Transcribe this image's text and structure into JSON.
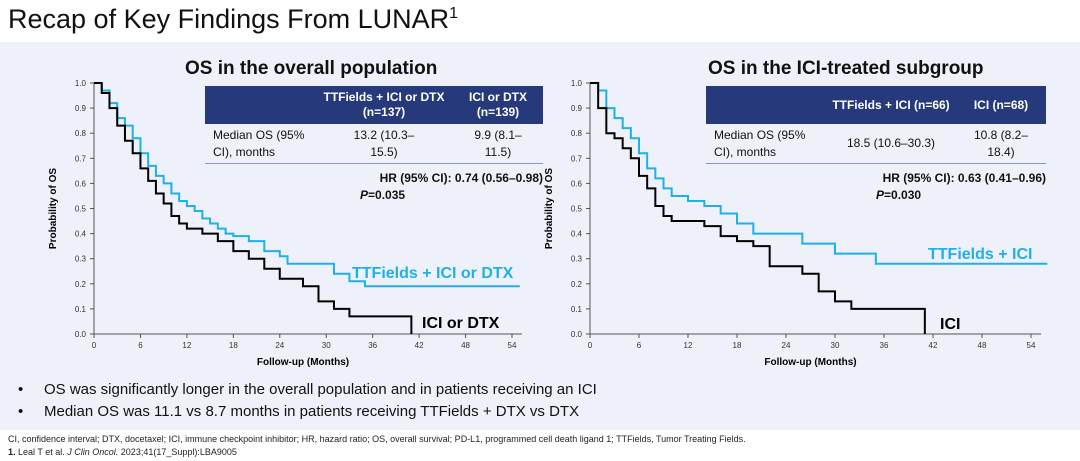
{
  "title": "Recap of Key Findings From LUNAR",
  "title_sup": "1",
  "colors": {
    "ttfields": "#1eb0ea",
    "control": "#000000",
    "table_header": "#26397a"
  },
  "chart_data": [
    {
      "type": "line",
      "title": "OS in the overall population",
      "xlabel": "Follow-up (Months)",
      "ylabel": "Probability of OS",
      "xlim": [
        0,
        54
      ],
      "ylim": [
        0,
        1
      ],
      "xticks": [
        0,
        6,
        12,
        18,
        24,
        30,
        36,
        42,
        48,
        54
      ],
      "yticks": [
        0,
        0.1,
        0.2,
        0.3,
        0.4,
        0.5,
        0.6,
        0.7,
        0.8,
        0.9,
        1.0
      ],
      "series": [
        {
          "name": "TTFields + ICI or DTX",
          "color": "#1eb0ea",
          "x": [
            0,
            1,
            2,
            3,
            4,
            5,
            6,
            7,
            8,
            9,
            10,
            11,
            12,
            13,
            14,
            15,
            16,
            17,
            18,
            20,
            22,
            24,
            25,
            31,
            33,
            35,
            55
          ],
          "y": [
            1,
            0.97,
            0.92,
            0.86,
            0.83,
            0.78,
            0.72,
            0.67,
            0.63,
            0.6,
            0.56,
            0.53,
            0.51,
            0.49,
            0.46,
            0.44,
            0.42,
            0.4,
            0.39,
            0.37,
            0.33,
            0.31,
            0.28,
            0.24,
            0.21,
            0.19,
            0.19
          ]
        },
        {
          "name": "ICI or DTX",
          "color": "#000000",
          "x": [
            0,
            1,
            2,
            3,
            4,
            5,
            6,
            7,
            8,
            9,
            10,
            11,
            12,
            14,
            16,
            18,
            20,
            22,
            24,
            27,
            29,
            31,
            33,
            41,
            41
          ],
          "y": [
            1,
            0.96,
            0.9,
            0.83,
            0.77,
            0.72,
            0.66,
            0.61,
            0.56,
            0.52,
            0.47,
            0.44,
            0.42,
            0.4,
            0.37,
            0.33,
            0.3,
            0.26,
            0.22,
            0.19,
            0.13,
            0.1,
            0.07,
            0.07,
            0
          ]
        }
      ],
      "table": {
        "headers": [
          "",
          "TTFields + ICI or DTX (n=137)",
          "ICI or DTX (n=139)"
        ],
        "row": [
          "Median OS (95% CI), months",
          "13.2 (10.3–15.5)",
          "9.9 (8.1–11.5)"
        ],
        "hr": "HR (95% CI): 0.74 (0.56–0.98)",
        "p": "P=0.035"
      }
    },
    {
      "type": "line",
      "title": "OS in the ICI-treated subgroup",
      "xlabel": "Follow-up (Months)",
      "ylabel": "Probability of OS",
      "xlim": [
        0,
        54
      ],
      "ylim": [
        0,
        1
      ],
      "xticks": [
        0,
        6,
        12,
        18,
        24,
        30,
        36,
        42,
        48,
        54
      ],
      "yticks": [
        0,
        0.1,
        0.2,
        0.3,
        0.4,
        0.5,
        0.6,
        0.7,
        0.8,
        0.9,
        1.0
      ],
      "series": [
        {
          "name": "TTFields + ICI",
          "color": "#1eb0ea",
          "x": [
            0,
            1,
            2,
            3,
            4,
            5,
            6,
            7,
            8,
            9,
            10,
            12,
            14,
            16,
            18,
            20,
            26,
            30,
            35,
            56
          ],
          "y": [
            1,
            0.97,
            0.9,
            0.86,
            0.82,
            0.78,
            0.72,
            0.66,
            0.62,
            0.58,
            0.55,
            0.53,
            0.51,
            0.48,
            0.44,
            0.4,
            0.36,
            0.32,
            0.28,
            0.28
          ]
        },
        {
          "name": "ICI",
          "color": "#000000",
          "x": [
            0,
            1,
            2,
            3,
            4,
            5,
            6,
            7,
            8,
            9,
            10,
            14,
            16,
            18,
            20,
            22,
            26,
            28,
            30,
            32,
            41,
            41
          ],
          "y": [
            1,
            0.9,
            0.8,
            0.78,
            0.74,
            0.7,
            0.63,
            0.58,
            0.51,
            0.47,
            0.45,
            0.43,
            0.39,
            0.37,
            0.35,
            0.27,
            0.24,
            0.17,
            0.13,
            0.1,
            0.1,
            0
          ]
        }
      ],
      "table": {
        "headers": [
          "",
          "TTFields + ICI (n=66)",
          "ICI (n=68)"
        ],
        "row": [
          "Median OS (95% CI), months",
          "18.5 (10.6–30.3)",
          "10.8 (8.2–18.4)"
        ],
        "hr": "HR (95% CI): 0.63 (0.41–0.96)",
        "p": "P=0.030"
      }
    }
  ],
  "bullets": [
    "OS was significantly longer in the overall population and in patients receiving an ICI",
    "Median OS was 11.1 vs 8.7 months in patients receiving TTFields + DTX vs DTX"
  ],
  "footnote": "CI, confidence interval;  DTX, docetaxel; ICI, immune checkpoint inhibitor; HR, hazard ratio; OS, overall survival; PD-L1, programmed cell death ligand 1; TTFields, Tumor Treating Fields.",
  "reference": {
    "num": "1.",
    "authors": "Leal T et al.",
    "journal": "J Clin Oncol.",
    "rest": "2023;41(17_Suppl):LBA9005"
  }
}
